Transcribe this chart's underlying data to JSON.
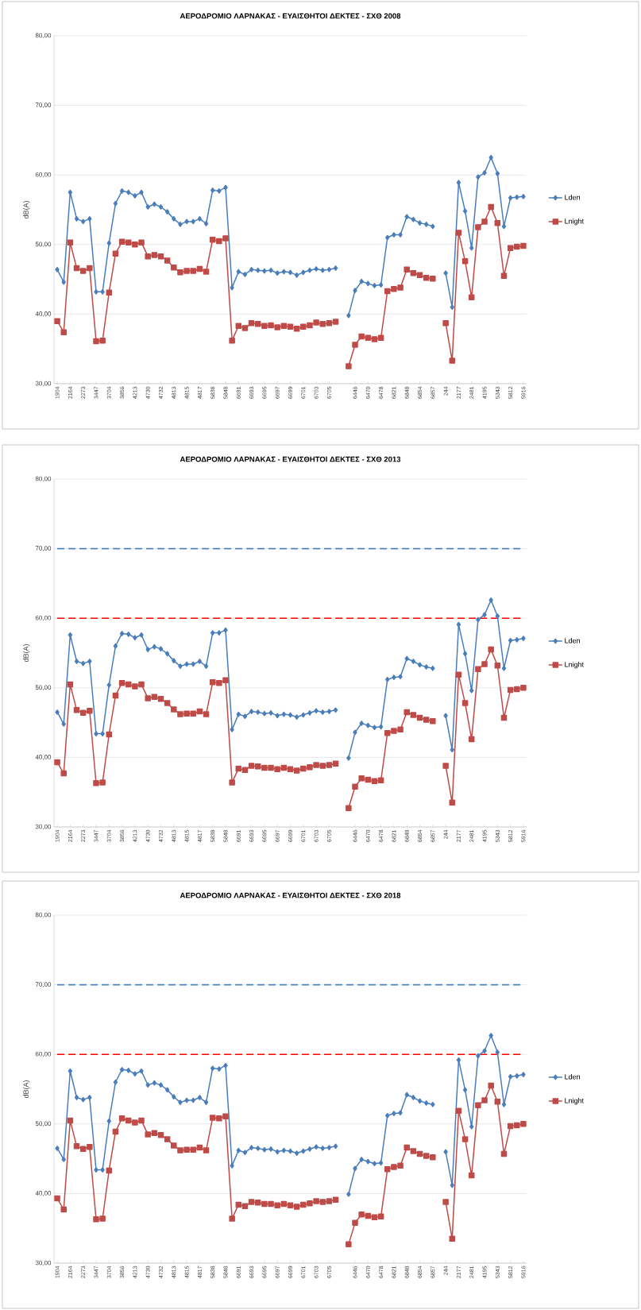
{
  "chart_data": [
    {
      "type": "line",
      "title": "ΑΕΡΟΔΡΟΜΙΟ ΛΑΡΝΑΚΑΣ - ΕΥΑΙΣΘΗΤΟΙ ΔΕΚΤΕΣ - ΣΧΘ 2008",
      "ylabel": "dB(A)",
      "categories": [
        "1904",
        null,
        "2164",
        null,
        "2273",
        null,
        "3447",
        null,
        "3704",
        null,
        "3856",
        null,
        "4213",
        null,
        "4730",
        null,
        "4732",
        null,
        "4813",
        null,
        "4815",
        null,
        "4817",
        null,
        "5838",
        null,
        "5848",
        null,
        "6691",
        null,
        "6693",
        null,
        "6695",
        null,
        "6697",
        null,
        "6699",
        null,
        "6701",
        null,
        "6703",
        null,
        "6705",
        null,
        null,
        null,
        "6446",
        null,
        "6470",
        null,
        "6478",
        null,
        "6821",
        null,
        "6848",
        null,
        "6854",
        null,
        "6857",
        null,
        "244",
        null,
        "2177",
        null,
        "2481",
        null,
        "4195",
        null,
        "5343",
        null,
        "5812",
        null,
        "5916"
      ],
      "series": [
        {
          "name": "Lden",
          "color": "#4a7ebb",
          "marker": "diamond",
          "values": [
            46.4,
            44.6,
            57.5,
            53.7,
            53.3,
            53.7,
            43.2,
            43.2,
            50.2,
            55.9,
            57.7,
            57.5,
            57.0,
            57.5,
            55.4,
            55.8,
            55.4,
            54.7,
            53.7,
            52.9,
            53.3,
            53.3,
            53.7,
            53.0,
            57.8,
            57.7,
            58.2,
            43.8,
            46.1,
            45.7,
            46.4,
            46.3,
            46.2,
            46.3,
            45.9,
            46.1,
            46.0,
            45.6,
            46.0,
            46.3,
            46.5,
            46.3,
            46.4,
            46.6,
            null,
            39.8,
            43.4,
            44.7,
            44.4,
            44.1,
            44.2,
            51.0,
            51.4,
            51.4,
            54.0,
            53.6,
            53.1,
            52.9,
            52.6,
            null,
            45.9,
            41.0,
            58.9,
            54.8,
            49.5,
            59.7,
            60.3,
            62.5,
            60.2,
            52.6,
            56.7,
            56.8,
            56.9
          ]
        },
        {
          "name": "Lnight",
          "color": "#be4b48",
          "marker": "square",
          "values": [
            39.0,
            37.4,
            50.3,
            46.6,
            46.2,
            46.6,
            36.1,
            36.2,
            43.1,
            48.7,
            50.4,
            50.3,
            50.0,
            50.3,
            48.3,
            48.5,
            48.3,
            47.7,
            46.7,
            46.0,
            46.2,
            46.2,
            46.5,
            46.1,
            50.7,
            50.5,
            50.9,
            36.2,
            38.3,
            38.0,
            38.7,
            38.6,
            38.3,
            38.4,
            38.1,
            38.3,
            38.2,
            37.9,
            38.2,
            38.4,
            38.8,
            38.6,
            38.7,
            38.9,
            null,
            32.5,
            35.6,
            36.8,
            36.6,
            36.4,
            36.6,
            43.3,
            43.6,
            43.8,
            46.4,
            45.9,
            45.6,
            45.2,
            45.1,
            null,
            38.7,
            33.3,
            51.7,
            47.6,
            42.4,
            52.5,
            53.3,
            55.4,
            53.1,
            45.5,
            49.5,
            49.7,
            49.8
          ]
        }
      ],
      "ylim": [
        30,
        80
      ],
      "yticks": [
        {
          "value": 30,
          "label": "30,00"
        },
        {
          "value": 40,
          "label": "40,00"
        },
        {
          "value": 50,
          "label": "50,00"
        },
        {
          "value": 60,
          "label": "60,00"
        },
        {
          "value": 70,
          "label": "70,00"
        },
        {
          "value": 80,
          "label": "80,00"
        }
      ],
      "grid": "y",
      "legend": "right"
    },
    {
      "type": "line",
      "title": "ΑΕΡΟΔΡΟΜΙΟ ΛΑΡΝΑΚΑΣ - ΕΥΑΙΣΘΗΤΟΙ ΔΕΚΤΕΣ - ΣΧΘ 2013",
      "ylabel": "dB(A)",
      "categories": [
        "1904",
        null,
        "2164",
        null,
        "2273",
        null,
        "3447",
        null,
        "3704",
        null,
        "3856",
        null,
        "4213",
        null,
        "4730",
        null,
        "4732",
        null,
        "4813",
        null,
        "4815",
        null,
        "4817",
        null,
        "5838",
        null,
        "5848",
        null,
        "6691",
        null,
        "6693",
        null,
        "6695",
        null,
        "6697",
        null,
        "6699",
        null,
        "6701",
        null,
        "6703",
        null,
        "6705",
        null,
        null,
        null,
        "6446",
        null,
        "6470",
        null,
        "6478",
        null,
        "6821",
        null,
        "6848",
        null,
        "6854",
        null,
        "6857",
        null,
        "244",
        null,
        "2177",
        null,
        "2481",
        null,
        "4195",
        null,
        "5343",
        null,
        "5812",
        null,
        "5916"
      ],
      "series": [
        {
          "name": "Lden",
          "color": "#4a7ebb",
          "marker": "diamond",
          "values": [
            46.5,
            44.8,
            57.6,
            53.8,
            53.5,
            53.8,
            43.4,
            43.4,
            50.4,
            56.0,
            57.8,
            57.7,
            57.2,
            57.6,
            55.5,
            55.9,
            55.6,
            54.9,
            53.9,
            53.1,
            53.4,
            53.4,
            53.8,
            53.1,
            57.9,
            57.9,
            58.3,
            44.0,
            46.2,
            45.9,
            46.6,
            46.5,
            46.3,
            46.4,
            46.0,
            46.2,
            46.1,
            45.8,
            46.1,
            46.4,
            46.7,
            46.5,
            46.6,
            46.8,
            null,
            39.9,
            43.6,
            44.9,
            44.6,
            44.3,
            44.4,
            51.2,
            51.5,
            51.6,
            54.2,
            53.8,
            53.3,
            53.0,
            52.8,
            null,
            46.0,
            41.1,
            59.1,
            54.9,
            49.6,
            59.8,
            60.5,
            62.6,
            60.3,
            52.8,
            56.8,
            56.9,
            57.1
          ]
        },
        {
          "name": "Lnight",
          "color": "#be4b48",
          "marker": "square",
          "values": [
            39.3,
            37.7,
            50.5,
            46.8,
            46.4,
            46.7,
            36.3,
            36.4,
            43.3,
            48.9,
            50.7,
            50.5,
            50.2,
            50.5,
            48.5,
            48.7,
            48.4,
            47.8,
            46.9,
            46.2,
            46.3,
            46.3,
            46.6,
            46.2,
            50.8,
            50.7,
            51.1,
            36.4,
            38.4,
            38.2,
            38.8,
            38.7,
            38.5,
            38.5,
            38.3,
            38.5,
            38.3,
            38.1,
            38.4,
            38.6,
            38.9,
            38.8,
            38.9,
            39.1,
            null,
            32.7,
            35.8,
            37.0,
            36.8,
            36.6,
            36.7,
            43.5,
            43.8,
            44.0,
            46.5,
            46.1,
            45.7,
            45.4,
            45.2,
            null,
            38.8,
            33.5,
            51.9,
            47.8,
            42.6,
            52.7,
            53.4,
            55.5,
            53.2,
            45.7,
            49.7,
            49.8,
            50.0
          ]
        }
      ],
      "ylim": [
        30,
        80
      ],
      "yticks": [
        {
          "value": 30,
          "label": "30,00"
        },
        {
          "value": 40,
          "label": "40,00"
        },
        {
          "value": 50,
          "label": "50,00"
        },
        {
          "value": 60,
          "label": "60,00"
        },
        {
          "value": 70,
          "label": "70,00"
        },
        {
          "value": 80,
          "label": "80,00"
        }
      ],
      "ref_lines": [
        {
          "axis": "y",
          "value": 70,
          "color": "#4f81bd",
          "line_style": "dashed"
        },
        {
          "axis": "y",
          "value": 60,
          "color": "#ff0000",
          "line_style": "dashed"
        }
      ],
      "grid": "y",
      "legend": "right"
    },
    {
      "type": "line",
      "title": "ΑΕΡΟΔΡΟΜΙΟ ΛΑΡΝΑΚΑΣ - ΕΥΑΙΣΘΗΤΟΙ ΔΕΚΤΕΣ - ΣΧΘ 2018",
      "ylabel": "dB(A)",
      "categories": [
        "1904",
        null,
        "2164",
        null,
        "2273",
        null,
        "3447",
        null,
        "3704",
        null,
        "3856",
        null,
        "4213",
        null,
        "4730",
        null,
        "4732",
        null,
        "4813",
        null,
        "4815",
        null,
        "4817",
        null,
        "5838",
        null,
        "5848",
        null,
        "6691",
        null,
        "6693",
        null,
        "6695",
        null,
        "6697",
        null,
        "6699",
        null,
        "6701",
        null,
        "6703",
        null,
        "6705",
        null,
        null,
        null,
        "6446",
        null,
        "6470",
        null,
        "6478",
        null,
        "6821",
        null,
        "6848",
        null,
        "6854",
        null,
        "6857",
        null,
        "244",
        null,
        "2177",
        null,
        "2481",
        null,
        "4195",
        null,
        "5343",
        null,
        "5812",
        null,
        "5916"
      ],
      "series": [
        {
          "name": "Lden",
          "color": "#4a7ebb",
          "marker": "diamond",
          "values": [
            46.5,
            44.9,
            57.6,
            53.8,
            53.5,
            53.8,
            43.4,
            43.4,
            50.4,
            56.0,
            57.8,
            57.7,
            57.2,
            57.6,
            55.6,
            55.9,
            55.6,
            54.9,
            53.9,
            53.1,
            53.4,
            53.4,
            53.8,
            53.1,
            58.0,
            57.9,
            58.4,
            44.0,
            46.2,
            45.9,
            46.6,
            46.5,
            46.3,
            46.4,
            46.0,
            46.2,
            46.1,
            45.8,
            46.1,
            46.4,
            46.7,
            46.5,
            46.6,
            46.8,
            null,
            39.9,
            43.6,
            44.9,
            44.6,
            44.3,
            44.4,
            51.2,
            51.5,
            51.6,
            54.2,
            53.8,
            53.3,
            53.0,
            52.8,
            null,
            46.0,
            41.2,
            59.2,
            54.9,
            49.6,
            59.8,
            60.5,
            62.7,
            60.3,
            52.8,
            56.8,
            56.9,
            57.1
          ]
        },
        {
          "name": "Lnight",
          "color": "#be4b48",
          "marker": "square",
          "values": [
            39.3,
            37.7,
            50.5,
            46.8,
            46.4,
            46.7,
            36.3,
            36.4,
            43.3,
            48.9,
            50.8,
            50.5,
            50.2,
            50.5,
            48.5,
            48.7,
            48.4,
            47.8,
            46.9,
            46.2,
            46.3,
            46.3,
            46.6,
            46.2,
            50.9,
            50.8,
            51.1,
            36.4,
            38.4,
            38.2,
            38.8,
            38.7,
            38.5,
            38.5,
            38.3,
            38.5,
            38.3,
            38.1,
            38.4,
            38.6,
            38.9,
            38.8,
            38.9,
            39.1,
            null,
            32.7,
            35.8,
            37.0,
            36.8,
            36.6,
            36.7,
            43.5,
            43.8,
            44.0,
            46.6,
            46.1,
            45.7,
            45.4,
            45.2,
            null,
            38.8,
            33.5,
            51.9,
            47.8,
            42.6,
            52.7,
            53.4,
            55.5,
            53.2,
            45.7,
            49.7,
            49.8,
            50.0
          ]
        }
      ],
      "ylim": [
        30,
        80
      ],
      "yticks": [
        {
          "value": 30,
          "label": "30,00"
        },
        {
          "value": 40,
          "label": "40,00"
        },
        {
          "value": 50,
          "label": "50,00"
        },
        {
          "value": 60,
          "label": "60,00"
        },
        {
          "value": 70,
          "label": "70,00"
        },
        {
          "value": 80,
          "label": "80,00"
        }
      ],
      "ref_lines": [
        {
          "axis": "y",
          "value": 70,
          "color": "#4f81bd",
          "line_style": "dashed"
        },
        {
          "axis": "y",
          "value": 60,
          "color": "#ff0000",
          "line_style": "dashed"
        }
      ],
      "grid": "y",
      "legend": "right"
    }
  ]
}
